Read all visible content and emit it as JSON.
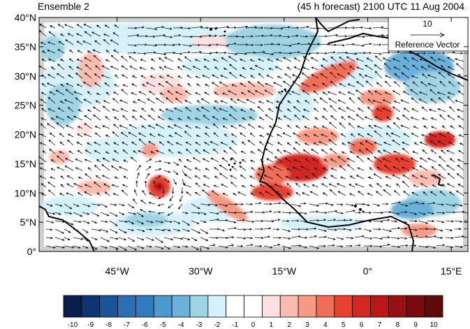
{
  "header": {
    "left_title": "Ensemble 2",
    "right_title": "(45 h forecast) 2100 UTC 11 Aug 2004"
  },
  "map": {
    "lon_range": [
      -59,
      18
    ],
    "lat_range": [
      0,
      40
    ],
    "y_ticks": [
      {
        "lat": 0,
        "label": "0°"
      },
      {
        "lat": 5,
        "label": "5°N"
      },
      {
        "lat": 10,
        "label": "10°N"
      },
      {
        "lat": 15,
        "label": "15°N"
      },
      {
        "lat": 20,
        "label": "20°N"
      },
      {
        "lat": 25,
        "label": "25°N"
      },
      {
        "lat": 30,
        "label": "30°N"
      },
      {
        "lat": 35,
        "label": "35°N"
      },
      {
        "lat": 40,
        "label": "40°N"
      }
    ],
    "x_ticks": [
      {
        "lon": -45,
        "label": "45°W"
      },
      {
        "lon": -30,
        "label": "30°W"
      },
      {
        "lon": -15,
        "label": "15°W"
      },
      {
        "lon": 0,
        "label": "0°"
      },
      {
        "lon": 15,
        "label": "15°E"
      }
    ],
    "reference_vector": {
      "value": "10",
      "label": "Reference Vector"
    }
  },
  "colorbar": {
    "colors": [
      "#0a1e4e",
      "#0d3473",
      "#1a559c",
      "#2a6fb4",
      "#2f7dc0",
      "#4a9ad0",
      "#6bb1d9",
      "#9fd4e4",
      "#d5f1fa",
      "#ffffff",
      "#ffffff",
      "#fee0e0",
      "#fbbcb0",
      "#f79a85",
      "#f26d55",
      "#e8412f",
      "#d42722",
      "#bb1717",
      "#9a0f14",
      "#7a0a10",
      "#5e0a0a"
    ],
    "labels": [
      "-10",
      "-9",
      "-8",
      "-7",
      "-6",
      "-5",
      "-4",
      "-3",
      "-2",
      "-1",
      "0",
      "1",
      "2",
      "3",
      "4",
      "5",
      "6",
      "7",
      "8",
      "9",
      "10"
    ]
  }
}
